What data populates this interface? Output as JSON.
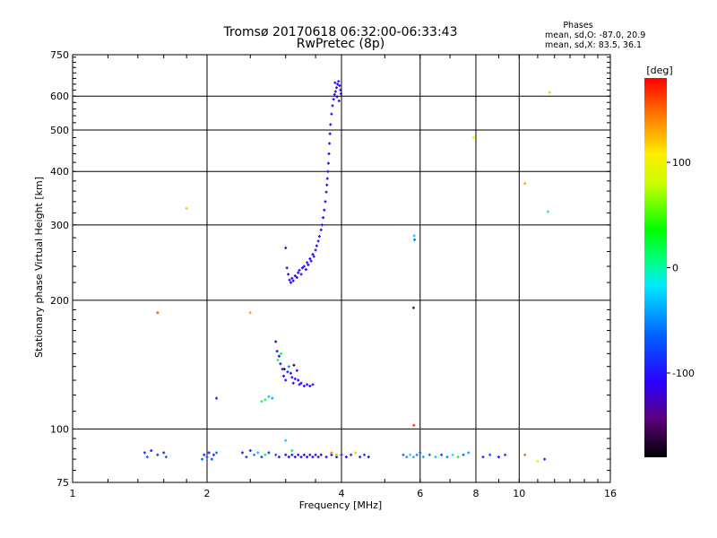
{
  "chart_data": {
    "type": "scatter",
    "title_lines": [
      "Tromsø 20170618 06:32:00-06:33:43",
      "RwPretec (8p)"
    ],
    "xlabel": "Frequency [MHz]",
    "ylabel": "Stationary phase Virtual Height [km]",
    "x_scale": "log2",
    "y_scale": "log",
    "xlim": [
      1,
      16
    ],
    "ylim": [
      75,
      750
    ],
    "x_ticks": [
      1,
      2,
      4,
      6,
      8,
      10,
      16
    ],
    "x_tick_labels": [
      "1",
      "2",
      "4",
      "6",
      "8",
      "10",
      "16"
    ],
    "y_ticks": [
      75,
      100,
      200,
      300,
      400,
      500,
      600,
      750
    ],
    "y_tick_labels": [
      "75",
      "100",
      "200",
      "300",
      "400",
      "500",
      "600",
      "750"
    ],
    "grid": true,
    "annotation": {
      "header": "Phases",
      "line1": "mean, sd,O: -87.0, 20.9",
      "line2": "mean, sd,X:  83.5, 36.1"
    },
    "colorbar": {
      "label": "[deg]",
      "range": [
        -180,
        180
      ],
      "ticks": [
        100,
        0,
        -100
      ],
      "tick_labels": [
        "100",
        "0",
        "-100"
      ]
    },
    "series": [
      {
        "points": [
          [
            3.0,
            265,
            -110
          ],
          [
            3.02,
            238,
            -105
          ],
          [
            3.04,
            230,
            -110
          ],
          [
            3.06,
            223,
            -108
          ],
          [
            3.08,
            220,
            -112
          ],
          [
            3.1,
            225,
            -100
          ],
          [
            3.12,
            222,
            -108
          ],
          [
            3.15,
            228,
            -110
          ],
          [
            3.18,
            226,
            -105
          ],
          [
            3.2,
            232,
            -110
          ],
          [
            3.22,
            235,
            -100
          ],
          [
            3.25,
            230,
            -108
          ],
          [
            3.27,
            238,
            -110
          ],
          [
            3.3,
            240,
            -105
          ],
          [
            3.33,
            236,
            -112
          ],
          [
            3.35,
            245,
            -100
          ],
          [
            3.37,
            242,
            -108
          ],
          [
            3.4,
            250,
            -110
          ],
          [
            3.42,
            247,
            -105
          ],
          [
            3.45,
            256,
            -112
          ],
          [
            3.47,
            253,
            -100
          ],
          [
            3.5,
            262,
            -108
          ],
          [
            3.52,
            268,
            -110
          ],
          [
            3.55,
            275,
            -105
          ],
          [
            3.57,
            282,
            -108
          ],
          [
            3.6,
            292,
            -100
          ],
          [
            3.62,
            300,
            -110
          ],
          [
            3.64,
            312,
            -105
          ],
          [
            3.66,
            325,
            -108
          ],
          [
            3.68,
            340,
            -112
          ],
          [
            3.7,
            358,
            -100
          ],
          [
            3.71,
            372,
            -108
          ],
          [
            3.72,
            385,
            -110
          ],
          [
            3.73,
            400,
            -105
          ],
          [
            3.74,
            418,
            -108
          ],
          [
            3.75,
            440,
            -112
          ],
          [
            3.76,
            465,
            -100
          ],
          [
            3.77,
            490,
            -108
          ],
          [
            3.78,
            515,
            -110
          ],
          [
            3.8,
            545,
            -105
          ],
          [
            3.82,
            570,
            -108
          ],
          [
            3.84,
            590,
            -100
          ],
          [
            3.86,
            605,
            -110
          ],
          [
            3.88,
            615,
            -105
          ],
          [
            3.9,
            628,
            -108
          ],
          [
            3.92,
            640,
            -112
          ],
          [
            3.94,
            650,
            -100
          ],
          [
            3.96,
            635,
            -108
          ],
          [
            3.98,
            620,
            -110
          ],
          [
            3.87,
            645,
            -105
          ],
          [
            3.91,
            598,
            -108
          ],
          [
            3.95,
            585,
            -100
          ],
          [
            3.99,
            608,
            -110
          ]
        ]
      },
      {
        "points": [
          [
            2.85,
            160,
            -110
          ],
          [
            2.87,
            152,
            -100
          ],
          [
            2.9,
            148,
            -120
          ],
          [
            2.92,
            142,
            -105
          ],
          [
            2.95,
            138,
            -95
          ],
          [
            2.97,
            133,
            -110
          ],
          [
            3.0,
            130,
            -100
          ],
          [
            3.03,
            136,
            -90
          ],
          [
            3.05,
            140,
            -50
          ],
          [
            3.08,
            135,
            -115
          ],
          [
            3.1,
            132,
            -100
          ],
          [
            3.12,
            128,
            -110
          ],
          [
            3.15,
            131,
            -95
          ],
          [
            3.18,
            137,
            -105
          ],
          [
            3.2,
            130,
            -110
          ],
          [
            3.22,
            127,
            -100
          ],
          [
            3.25,
            128,
            -108
          ],
          [
            3.3,
            126,
            -110
          ],
          [
            3.35,
            127,
            -105
          ],
          [
            3.4,
            126,
            -108
          ],
          [
            3.45,
            127,
            -100
          ],
          [
            2.8,
            118,
            -40
          ],
          [
            2.75,
            119,
            -30
          ],
          [
            2.7,
            117,
            40
          ],
          [
            2.65,
            116,
            -20
          ],
          [
            2.88,
            145,
            10
          ],
          [
            2.93,
            150,
            30
          ],
          [
            3.13,
            141,
            -160
          ],
          [
            2.98,
            138,
            -170
          ],
          [
            2.1,
            118,
            -100
          ]
        ]
      },
      {
        "points": [
          [
            1.45,
            88,
            -90
          ],
          [
            1.47,
            86,
            -60
          ],
          [
            1.5,
            89,
            -100
          ],
          [
            1.55,
            87,
            -80
          ],
          [
            1.6,
            88,
            -95
          ],
          [
            1.62,
            86,
            -70
          ],
          [
            1.95,
            85,
            -60
          ],
          [
            1.97,
            87,
            -90
          ],
          [
            2.0,
            86,
            -80
          ],
          [
            2.02,
            88,
            -100
          ],
          [
            2.05,
            85,
            -70
          ],
          [
            2.07,
            87,
            -90
          ],
          [
            2.1,
            88,
            -60
          ],
          [
            2.4,
            88,
            -100
          ],
          [
            2.45,
            86,
            -80
          ],
          [
            2.5,
            89,
            -90
          ],
          [
            2.55,
            87,
            -50
          ],
          [
            2.6,
            88,
            -30
          ],
          [
            2.65,
            86,
            -80
          ],
          [
            2.7,
            87,
            20
          ],
          [
            2.75,
            88,
            -90
          ],
          [
            2.85,
            87,
            -70
          ],
          [
            2.9,
            86,
            -100
          ],
          [
            3.0,
            87,
            -110
          ],
          [
            3.05,
            86,
            -105
          ],
          [
            3.1,
            87,
            -100
          ],
          [
            3.15,
            86,
            -110
          ],
          [
            3.2,
            87,
            -105
          ],
          [
            3.25,
            86,
            -100
          ],
          [
            3.3,
            87,
            -110
          ],
          [
            3.35,
            86,
            -105
          ],
          [
            3.4,
            87,
            -100
          ],
          [
            3.45,
            86,
            -110
          ],
          [
            3.5,
            87,
            -108
          ],
          [
            3.55,
            86,
            -100
          ],
          [
            3.6,
            87,
            -110
          ],
          [
            3.7,
            86,
            -100
          ],
          [
            3.8,
            87,
            -108
          ],
          [
            3.9,
            86,
            -110
          ],
          [
            4.0,
            87,
            -100
          ],
          [
            4.1,
            86,
            -105
          ],
          [
            4.2,
            87,
            -90
          ],
          [
            4.3,
            88,
            120
          ],
          [
            4.4,
            86,
            -100
          ],
          [
            4.5,
            87,
            -80
          ],
          [
            4.6,
            86,
            -110
          ],
          [
            5.5,
            87,
            -60
          ],
          [
            5.6,
            86,
            -40
          ],
          [
            5.7,
            87,
            -20
          ],
          [
            5.8,
            86,
            -30
          ],
          [
            5.9,
            87,
            -50
          ],
          [
            6.0,
            88,
            -70
          ],
          [
            6.1,
            86,
            -40
          ],
          [
            6.3,
            87,
            -60
          ],
          [
            6.5,
            86,
            -30
          ],
          [
            6.7,
            87,
            -80
          ],
          [
            6.9,
            86,
            -50
          ],
          [
            7.1,
            87,
            -20
          ],
          [
            7.3,
            86,
            30
          ],
          [
            7.5,
            87,
            -60
          ],
          [
            7.7,
            88,
            -40
          ],
          [
            8.3,
            86,
            -90
          ],
          [
            8.6,
            87,
            -70
          ],
          [
            9.0,
            86,
            -100
          ],
          [
            9.3,
            87,
            -80
          ],
          [
            10.3,
            87,
            150
          ],
          [
            11.0,
            84,
            80
          ],
          [
            11.4,
            85,
            -90
          ],
          [
            3.8,
            88,
            140
          ],
          [
            3.9,
            87,
            60
          ],
          [
            3.1,
            89,
            20
          ],
          [
            3.0,
            94,
            -30
          ]
        ]
      },
      {
        "points": [
          [
            1.8,
            328,
            120
          ],
          [
            1.55,
            187,
            160
          ],
          [
            2.5,
            187,
            130
          ],
          [
            5.82,
            283,
            -30
          ],
          [
            5.83,
            277,
            -60
          ],
          [
            5.8,
            192,
            -150
          ],
          [
            5.81,
            102,
            165
          ],
          [
            7.9,
            480,
            110
          ],
          [
            10.3,
            375,
            130
          ],
          [
            11.6,
            322,
            -10
          ],
          [
            11.7,
            612,
            120
          ]
        ]
      }
    ]
  }
}
